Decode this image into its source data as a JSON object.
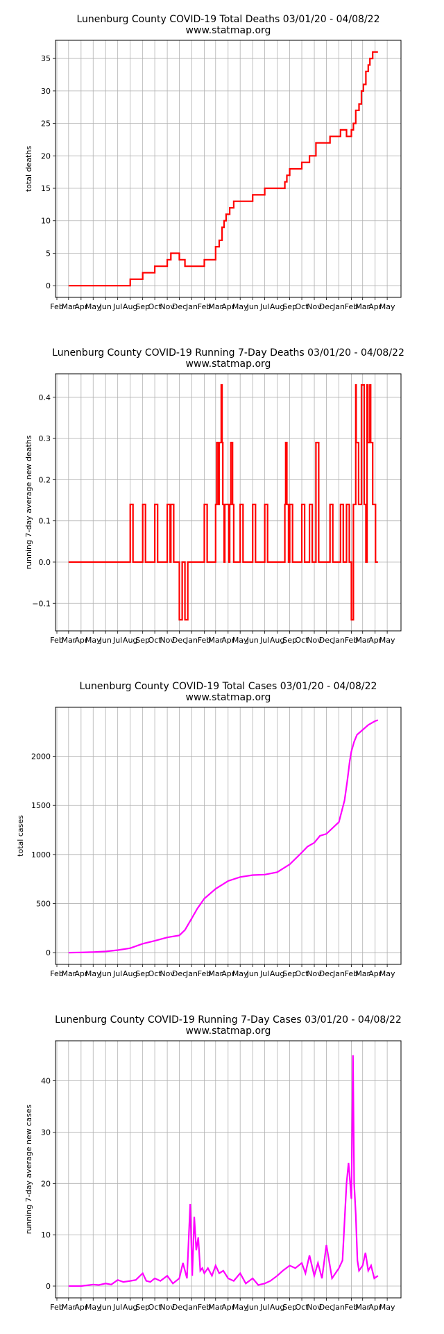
{
  "chart_data": [
    {
      "type": "line",
      "title": "Lunenburg County COVID-19 Total Deaths 03/01/20 - 04/08/22",
      "subtitle": "www.statmap.org",
      "xlabel": "",
      "ylabel": "total deaths",
      "xtick_labels": [
        "Feb",
        "Mar",
        "Apr",
        "May",
        "Jun",
        "Jul",
        "Aug",
        "Sep",
        "Oct",
        "Nov",
        "Dec",
        "Jan",
        "Feb",
        "Mar",
        "Apr",
        "May",
        "Jun",
        "Jul",
        "Aug",
        "Sep",
        "Oct",
        "Nov",
        "Dec",
        "Jan",
        "Feb",
        "Mar",
        "Apr",
        "May"
      ],
      "yticks": [
        0,
        5,
        10,
        15,
        20,
        25,
        30,
        35
      ],
      "ylim": [
        -1.8,
        37.8
      ],
      "grid": true,
      "series": [
        {
          "color": "#ff0000",
          "step": true,
          "x": [
            "2020-03-01",
            "2020-08-01",
            "2020-09-01",
            "2020-10-01",
            "2020-11-01",
            "2020-11-10",
            "2020-12-01",
            "2020-12-15",
            "2021-02-01",
            "2021-03-01",
            "2021-03-10",
            "2021-03-17",
            "2021-03-22",
            "2021-03-27",
            "2021-04-05",
            "2021-04-15",
            "2021-04-20",
            "2021-05-01",
            "2021-06-01",
            "2021-07-01",
            "2021-08-20",
            "2021-08-25",
            "2021-09-01",
            "2021-10-01",
            "2021-10-20",
            "2021-11-05",
            "2021-12-10",
            "2022-01-05",
            "2022-01-20",
            "2022-02-01",
            "2022-02-06",
            "2022-02-12",
            "2022-02-20",
            "2022-02-26",
            "2022-03-03",
            "2022-03-09",
            "2022-03-15",
            "2022-03-19",
            "2022-03-23",
            "2022-03-26",
            "2022-04-08"
          ],
          "y": [
            0,
            1,
            2,
            3,
            4,
            5,
            4,
            3,
            4,
            6,
            7,
            9,
            10,
            11,
            12,
            13,
            13,
            13,
            14,
            15,
            16,
            17,
            18,
            19,
            20,
            22,
            23,
            24,
            23,
            24,
            25,
            27,
            28,
            30,
            31,
            33,
            34,
            35,
            35,
            36,
            36
          ]
        }
      ]
    },
    {
      "type": "line",
      "title": "Lunenburg County COVID-19 Running 7-Day Deaths 03/01/20 - 04/08/22",
      "subtitle": "www.statmap.org",
      "xlabel": "",
      "ylabel": "running 7-day average new deaths",
      "xtick_labels": [
        "Feb",
        "Mar",
        "Apr",
        "May",
        "Jun",
        "Jul",
        "Aug",
        "Sep",
        "Oct",
        "Nov",
        "Dec",
        "Jan",
        "Feb",
        "Mar",
        "Apr",
        "May",
        "Jun",
        "Jul",
        "Aug",
        "Sep",
        "Oct",
        "Nov",
        "Dec",
        "Jan",
        "Feb",
        "Mar",
        "Apr",
        "May"
      ],
      "yticks": [
        -0.1,
        0.0,
        0.1,
        0.2,
        0.3,
        0.4
      ],
      "ytick_labels": [
        "−0.1",
        "0.0",
        "0.1",
        "0.2",
        "0.3",
        "0.4"
      ],
      "ylim": [
        -0.167,
        0.457
      ],
      "grid": true,
      "series": [
        {
          "color": "#ff0000",
          "step": true,
          "x": [
            "2020-03-01",
            "2020-08-01",
            "2020-08-08",
            "2020-09-01",
            "2020-09-08",
            "2020-10-01",
            "2020-10-08",
            "2020-11-01",
            "2020-11-08",
            "2020-11-10",
            "2020-11-17",
            "2020-12-01",
            "2020-12-08",
            "2020-12-15",
            "2020-12-22",
            "2021-02-01",
            "2021-02-08",
            "2021-03-01",
            "2021-03-04",
            "2021-03-08",
            "2021-03-10",
            "2021-03-15",
            "2021-03-17",
            "2021-03-19",
            "2021-03-22",
            "2021-03-24",
            "2021-03-27",
            "2021-03-29",
            "2021-04-03",
            "2021-04-05",
            "2021-04-08",
            "2021-04-12",
            "2021-04-15",
            "2021-04-22",
            "2021-05-01",
            "2021-05-08",
            "2021-06-01",
            "2021-06-08",
            "2021-07-01",
            "2021-07-08",
            "2021-08-20",
            "2021-08-22",
            "2021-08-25",
            "2021-08-29",
            "2021-09-01",
            "2021-09-08",
            "2021-10-01",
            "2021-10-08",
            "2021-10-20",
            "2021-10-27",
            "2021-11-05",
            "2021-11-12",
            "2021-12-10",
            "2021-12-17",
            "2022-01-05",
            "2022-01-12",
            "2022-01-20",
            "2022-01-27",
            "2022-02-01",
            "2022-02-06",
            "2022-02-08",
            "2022-02-12",
            "2022-02-13",
            "2022-02-19",
            "2022-02-26",
            "2022-03-05",
            "2022-03-09",
            "2022-03-12",
            "2022-03-14",
            "2022-03-19",
            "2022-03-21",
            "2022-03-26",
            "2022-04-02",
            "2022-04-08"
          ],
          "y": [
            0,
            0.14,
            0,
            0.14,
            0,
            0.14,
            0,
            0.14,
            0,
            0.14,
            0,
            -0.14,
            0,
            -0.14,
            0,
            0.14,
            0,
            0.14,
            0.29,
            0.14,
            0.29,
            0.43,
            0.29,
            0.14,
            0,
            0.14,
            0.14,
            0.14,
            0,
            0.14,
            0.29,
            0.14,
            0,
            0,
            0.14,
            0,
            0.14,
            0,
            0.14,
            0,
            0.14,
            0.29,
            0.14,
            0,
            0.14,
            0,
            0.14,
            0,
            0.14,
            0,
            0.29,
            0,
            0.14,
            0,
            0.14,
            0,
            0.14,
            0,
            -0.14,
            0.14,
            0.14,
            0.43,
            0.29,
            0.14,
            0.43,
            0.14,
            0,
            0.43,
            0.29,
            0.43,
            0.29,
            0.14,
            0,
            0
          ]
        }
      ]
    },
    {
      "type": "line",
      "title": "Lunenburg County COVID-19 Total Cases 03/01/20 - 04/08/22",
      "subtitle": "www.statmap.org",
      "xlabel": "",
      "ylabel": "total cases",
      "xtick_labels": [
        "Feb",
        "Mar",
        "Apr",
        "May",
        "Jun",
        "Jul",
        "Aug",
        "Sep",
        "Oct",
        "Nov",
        "Dec",
        "Jan",
        "Feb",
        "Mar",
        "Apr",
        "May",
        "Jun",
        "Jul",
        "Aug",
        "Sep",
        "Oct",
        "Nov",
        "Dec",
        "Jan",
        "Feb",
        "Mar",
        "Apr",
        "May"
      ],
      "yticks": [
        0,
        500,
        1000,
        1500,
        2000
      ],
      "ylim": [
        -120,
        2500
      ],
      "grid": true,
      "series": [
        {
          "color": "#ff00ff",
          "x": [
            "2020-03-01",
            "2020-04-01",
            "2020-05-01",
            "2020-06-01",
            "2020-07-01",
            "2020-08-01",
            "2020-09-01",
            "2020-10-01",
            "2020-11-01",
            "2020-12-01",
            "2020-12-15",
            "2021-01-01",
            "2021-01-15",
            "2021-02-01",
            "2021-03-01",
            "2021-04-01",
            "2021-05-01",
            "2021-06-01",
            "2021-07-01",
            "2021-08-01",
            "2021-09-01",
            "2021-10-01",
            "2021-10-15",
            "2021-11-01",
            "2021-11-15",
            "2021-12-01",
            "2022-01-01",
            "2022-01-15",
            "2022-01-22",
            "2022-01-28",
            "2022-02-01",
            "2022-02-08",
            "2022-02-15",
            "2022-03-01",
            "2022-03-15",
            "2022-04-01",
            "2022-04-08"
          ],
          "y": [
            0,
            2,
            5,
            12,
            25,
            45,
            90,
            120,
            155,
            175,
            230,
            350,
            450,
            550,
            650,
            730,
            770,
            790,
            795,
            820,
            900,
            1020,
            1080,
            1120,
            1190,
            1210,
            1330,
            1550,
            1750,
            1950,
            2050,
            2150,
            2220,
            2270,
            2320,
            2360,
            2370
          ]
        }
      ]
    },
    {
      "type": "line",
      "title": "Lunenburg County COVID-19 Running 7-Day Cases 03/01/20 - 04/08/22",
      "subtitle": "www.statmap.org",
      "xlabel": "",
      "ylabel": "running 7-day average new cases",
      "xtick_labels": [
        "Feb",
        "Mar",
        "Apr",
        "May",
        "Jun",
        "Jul",
        "Aug",
        "Sep",
        "Oct",
        "Nov",
        "Dec",
        "Jan",
        "Feb",
        "Mar",
        "Apr",
        "May",
        "Jun",
        "Jul",
        "Aug",
        "Sep",
        "Oct",
        "Nov",
        "Dec",
        "Jan",
        "Feb",
        "Mar",
        "Apr",
        "May"
      ],
      "yticks": [
        0,
        10,
        20,
        30,
        40
      ],
      "ylim": [
        -2.3,
        47.8
      ],
      "grid": true,
      "series": [
        {
          "color": "#ff00ff",
          "x": [
            "2020-03-01",
            "2020-04-01",
            "2020-05-01",
            "2020-05-15",
            "2020-06-01",
            "2020-06-15",
            "2020-07-01",
            "2020-07-15",
            "2020-08-01",
            "2020-08-15",
            "2020-09-01",
            "2020-09-10",
            "2020-09-20",
            "2020-10-01",
            "2020-10-15",
            "2020-11-01",
            "2020-11-15",
            "2020-12-01",
            "2020-12-10",
            "2020-12-20",
            "2020-12-28",
            "2021-01-02",
            "2021-01-07",
            "2021-01-12",
            "2021-01-17",
            "2021-01-22",
            "2021-01-27",
            "2021-02-01",
            "2021-02-10",
            "2021-02-20",
            "2021-03-01",
            "2021-03-10",
            "2021-03-20",
            "2021-04-01",
            "2021-04-15",
            "2021-05-01",
            "2021-05-15",
            "2021-06-01",
            "2021-06-15",
            "2021-07-01",
            "2021-07-15",
            "2021-08-01",
            "2021-08-15",
            "2021-09-01",
            "2021-09-15",
            "2021-10-01",
            "2021-10-10",
            "2021-10-20",
            "2021-11-01",
            "2021-11-10",
            "2021-11-20",
            "2021-12-01",
            "2021-12-15",
            "2022-01-01",
            "2022-01-10",
            "2022-01-20",
            "2022-01-25",
            "2022-02-01",
            "2022-02-05",
            "2022-02-08",
            "2022-02-12",
            "2022-02-16",
            "2022-02-20",
            "2022-03-01",
            "2022-03-08",
            "2022-03-15",
            "2022-03-22",
            "2022-03-30",
            "2022-04-08"
          ],
          "y": [
            0,
            0,
            0.3,
            0.2,
            0.5,
            0.3,
            1.2,
            0.8,
            1.0,
            1.2,
            2.5,
            1.0,
            0.8,
            1.5,
            1.0,
            2.0,
            0.5,
            1.5,
            4.5,
            1.5,
            16.0,
            2.0,
            13.5,
            7.0,
            9.5,
            3.0,
            3.5,
            2.5,
            3.5,
            2.0,
            4.0,
            2.5,
            3.0,
            1.5,
            1.0,
            2.5,
            0.5,
            1.5,
            0.2,
            0.5,
            1.0,
            2.0,
            3.0,
            4.0,
            3.5,
            4.5,
            2.5,
            6.0,
            2.0,
            4.5,
            1.5,
            8.0,
            1.5,
            3.5,
            5.0,
            20.0,
            24.0,
            17.0,
            45.0,
            20.0,
            14.0,
            5.0,
            3.0,
            4.0,
            6.5,
            3.0,
            4.0,
            1.5,
            2.0
          ]
        }
      ]
    }
  ]
}
